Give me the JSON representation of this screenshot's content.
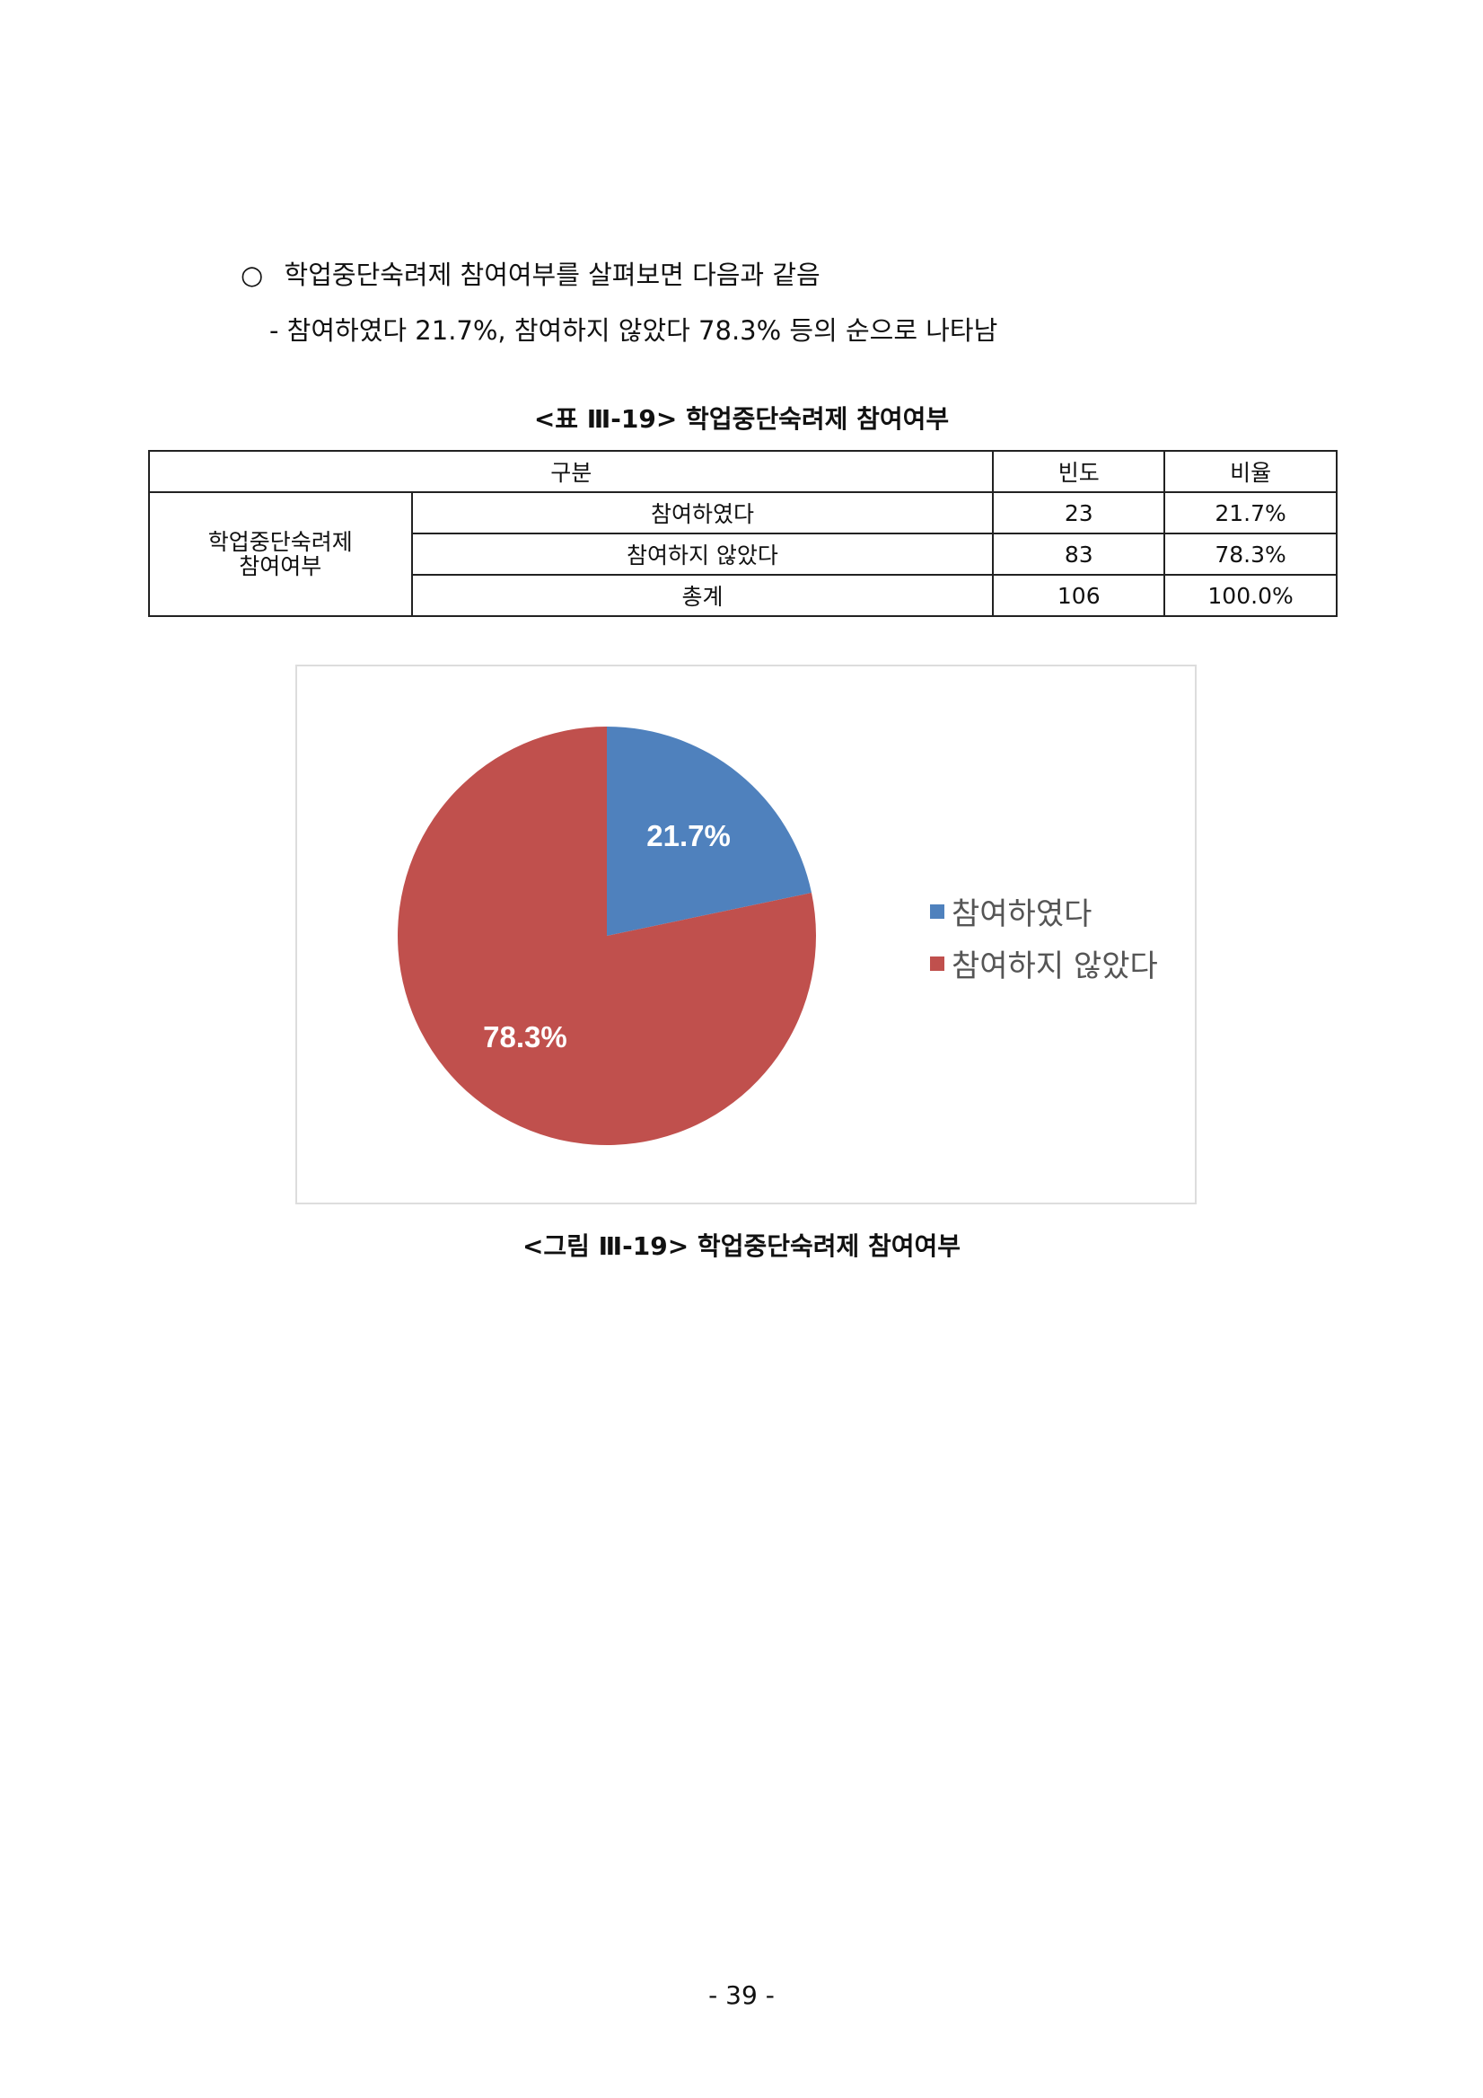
{
  "text": {
    "bullet_symbol": "○",
    "bullet_line": "학업중단숙려제 참여여부를 살펴보면 다음과 같음",
    "detail_line": "- 참여하였다 21.7%, 참여하지 않았다 78.3% 등의 순으로 나타남"
  },
  "table": {
    "caption": "<표 Ⅲ-19> 학업중단숙려제 참여여부",
    "headers": [
      "구분",
      "빈도",
      "비율"
    ],
    "group_label": "학업중단숙려제\n참여여부",
    "rows": [
      {
        "label": "참여하였다",
        "freq": "23",
        "ratio": "21.7%"
      },
      {
        "label": "참여하지 않았다",
        "freq": "83",
        "ratio": "78.3%"
      },
      {
        "label": "총계",
        "freq": "106",
        "ratio": "100.0%"
      }
    ]
  },
  "chart_data": {
    "type": "pie",
    "categories": [
      "참여하였다",
      "참여하지 않았다"
    ],
    "values": [
      21.7,
      78.3
    ],
    "data_labels": [
      "21.7%",
      "78.3%"
    ],
    "colors": [
      "#4f81bd",
      "#c0504d"
    ],
    "start_angle": "12 o'clock, clockwise",
    "legend_position": "right",
    "caption": "<그림 Ⅲ-19> 학업중단숙려제 참여여부"
  },
  "page_number": "- 39 -"
}
